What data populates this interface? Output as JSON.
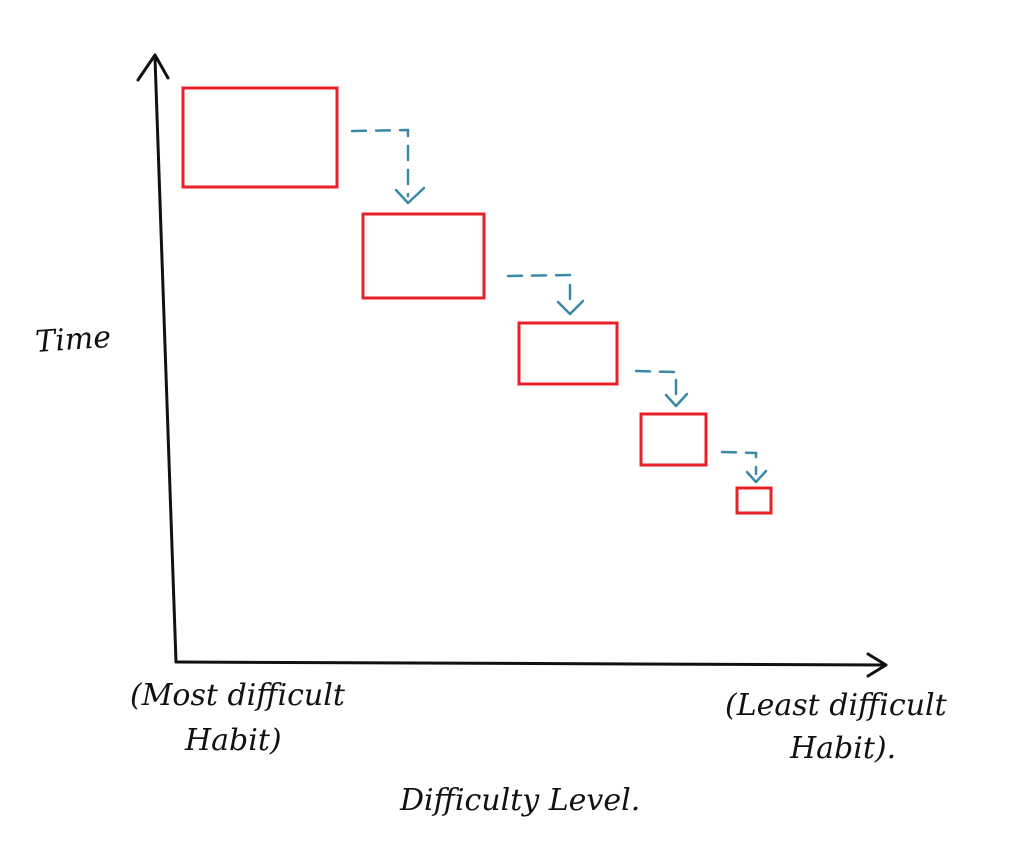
{
  "axis_labels": {
    "y": "Time",
    "x": "Difficulty Level."
  },
  "x_ends": {
    "left": [
      "(Most difficult",
      "Habit)"
    ],
    "right": [
      "(Least difficult",
      "Habit)."
    ]
  }
}
